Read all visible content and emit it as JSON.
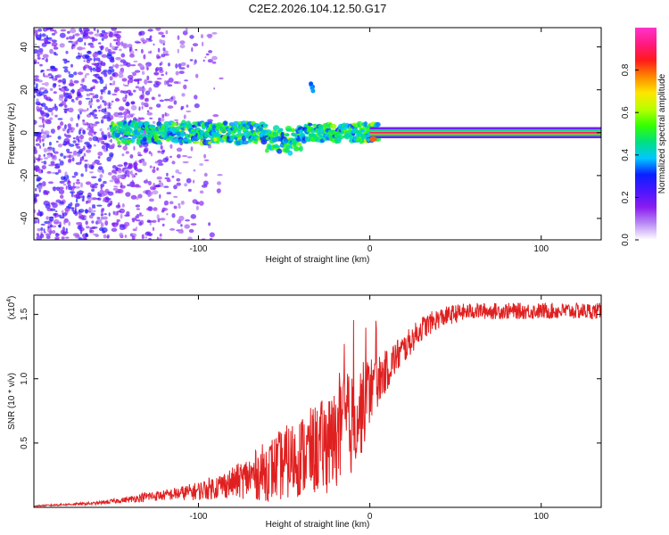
{
  "title": "C2E2.2026.104.12.50.G17",
  "chart_data": [
    {
      "type": "heatmap",
      "xlabel": "Height of straight line (km)",
      "ylabel": "Frequency (Hz)",
      "xlim": [
        -196,
        135
      ],
      "ylim": [
        -50,
        49
      ],
      "xticks": [
        -100,
        0,
        100
      ],
      "xtick_labels": [
        "-100",
        "0",
        "100"
      ],
      "yticks": [
        -40,
        -20,
        0,
        20,
        40
      ],
      "ytick_labels": [
        "-40",
        "-20",
        "0",
        "20",
        "40"
      ],
      "colorbar": {
        "label": "Normalized spectral amplitude",
        "range": [
          0,
          1
        ],
        "ticks": [
          0.0,
          0.2,
          0.4,
          0.6,
          0.8
        ],
        "tick_labels": [
          "0.0",
          "0.2",
          "0.4",
          "0.6",
          "0.8"
        ],
        "colors": [
          "#ffffff",
          "#b98cf5",
          "#8a1cf0",
          "#4a16ff",
          "#0a20ff",
          "#00c8ff",
          "#00e080",
          "#33ff00",
          "#b8ff00",
          "#ffe600",
          "#ff8800",
          "#ff1a1a",
          "#ff1a80",
          "#ff33cc"
        ]
      },
      "features": {
        "noise_region_x": [
          -196,
          -100
        ],
        "band_center_hz": 0,
        "band_width_hz": [
          4,
          1.5
        ],
        "blip_x": -34,
        "blip_hz": 21
      }
    },
    {
      "type": "line",
      "xlabel": "Height of straight line (km)",
      "ylabel": "SNR (10 * v/v)",
      "y_multiplier_label": "(x10",
      "y_multiplier_exp": "4",
      "y_multiplier_close": ")",
      "xlim": [
        -196,
        135
      ],
      "ylim": [
        0,
        1.65
      ],
      "xticks": [
        -100,
        0,
        100
      ],
      "xtick_labels": [
        "-100",
        "0",
        "100"
      ],
      "yticks": [
        0.5,
        1.0,
        1.5
      ],
      "ytick_labels": [
        "0.5",
        "1.0",
        "1.5"
      ],
      "color": "#e02020",
      "series": [
        {
          "name": "SNR",
          "x": [
            -196,
            -180,
            -160,
            -140,
            -130,
            -120,
            -100,
            -90,
            -80,
            -70,
            -60,
            -50,
            -40,
            -30,
            -20,
            -15,
            -10,
            -5,
            0,
            5,
            10,
            15,
            20,
            25,
            30,
            40,
            50,
            60,
            70,
            80,
            90,
            100,
            110,
            120,
            135
          ],
          "y": [
            0.01,
            0.02,
            0.03,
            0.06,
            0.08,
            0.09,
            0.12,
            0.15,
            0.18,
            0.22,
            0.26,
            0.31,
            0.37,
            0.42,
            0.48,
            0.55,
            0.62,
            0.72,
            0.88,
            0.97,
            1.05,
            1.15,
            1.22,
            1.3,
            1.38,
            1.46,
            1.5,
            1.52,
            1.52,
            1.52,
            1.52,
            1.52,
            1.52,
            1.52,
            1.52
          ],
          "spread": [
            0.005,
            0.01,
            0.015,
            0.03,
            0.05,
            0.05,
            0.09,
            0.12,
            0.15,
            0.22,
            0.3,
            0.36,
            0.4,
            0.45,
            0.5,
            0.52,
            0.5,
            0.45,
            0.35,
            0.25,
            0.2,
            0.18,
            0.15,
            0.13,
            0.12,
            0.1,
            0.09,
            0.08,
            0.08,
            0.08,
            0.08,
            0.08,
            0.08,
            0.08,
            0.08
          ]
        }
      ]
    }
  ]
}
